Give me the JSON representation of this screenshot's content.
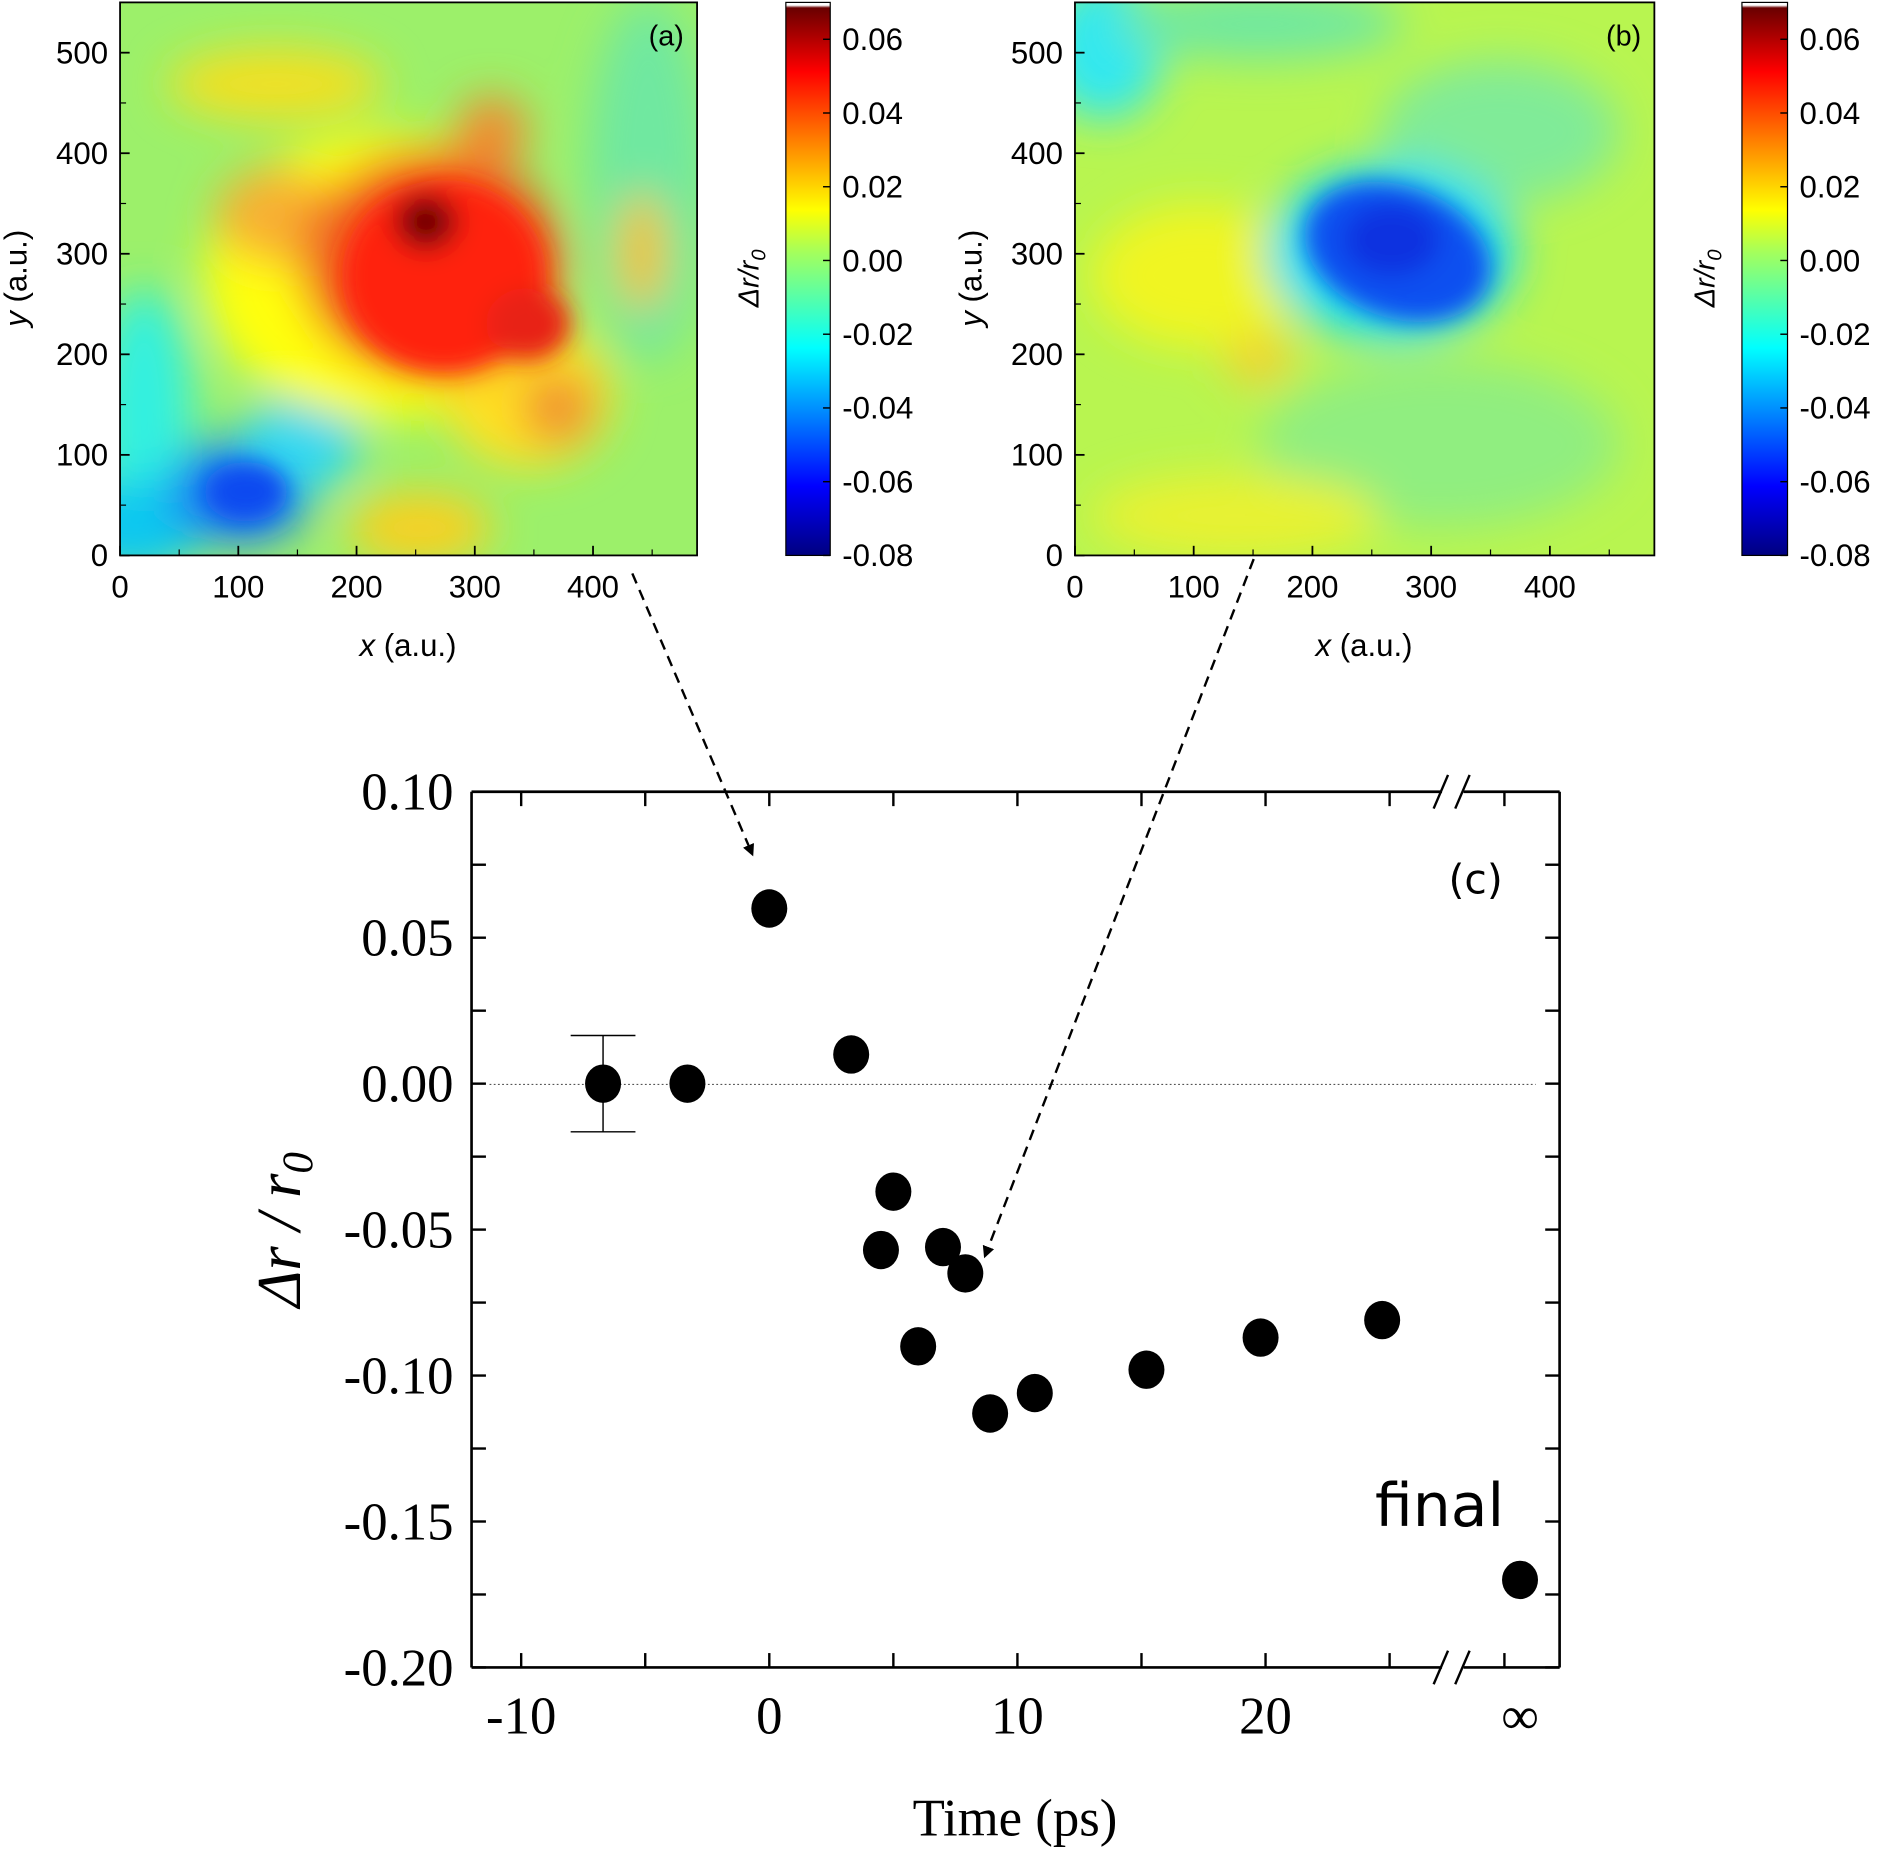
{
  "chart_data": [
    {
      "type": "heatmap",
      "panel_label": "(a)",
      "xlabel_var": "x",
      "xlabel_unit": " (a.u.)",
      "ylabel_var": "y",
      "ylabel_unit": " (a.u.)",
      "xlim": [
        0,
        488
      ],
      "ylim": [
        0,
        550
      ],
      "xticks": [
        "0",
        "100",
        "200",
        "300",
        "400"
      ],
      "yticks": [
        "0",
        "100",
        "200",
        "300",
        "400",
        "500"
      ],
      "colorbar": {
        "label_main": "Δr/r",
        "label_sub": "0",
        "range": [
          -0.08,
          0.07
        ],
        "ticks": [
          "0.06",
          "0.04",
          "0.02",
          "0.00",
          "-0.02",
          "-0.04",
          "-0.06",
          "-0.08"
        ],
        "colormap": "jet"
      },
      "features": "positive region (max ~0.07) centered near x=260, y=330; negative region (~-0.05) near x=110, y=60"
    },
    {
      "type": "heatmap",
      "panel_label": "(b)",
      "xlabel_var": "x",
      "xlabel_unit": " (a.u.)",
      "ylabel_var": "y",
      "ylabel_unit": " (a.u.)",
      "xlim": [
        0,
        488
      ],
      "ylim": [
        0,
        550
      ],
      "xticks": [
        "0",
        "100",
        "200",
        "300",
        "400"
      ],
      "yticks": [
        "0",
        "100",
        "200",
        "300",
        "400",
        "500"
      ],
      "colorbar": {
        "label_main": "Δr/r",
        "label_sub": "0",
        "range": [
          -0.08,
          0.07
        ],
        "ticks": [
          "0.06",
          "0.04",
          "0.02",
          "0.00",
          "-0.02",
          "-0.04",
          "-0.06",
          "-0.08"
        ],
        "colormap": "jet"
      },
      "features": "negative region (~-0.06) centered near x=270, y=310"
    },
    {
      "type": "scatter",
      "panel_label": "(c)",
      "xlabel": "Time (ps)",
      "ylabel_main": "Δr / r",
      "ylabel_sub": "0",
      "xlim": [
        -12,
        27.5
      ],
      "x_break": true,
      "ylim": [
        -0.2,
        0.1
      ],
      "xticks": [
        {
          "v": -10,
          "label": "-10"
        },
        {
          "v": 0,
          "label": "0"
        },
        {
          "v": 10,
          "label": "10"
        },
        {
          "v": 20,
          "label": "20"
        },
        {
          "v": "inf",
          "label": "∞"
        }
      ],
      "yticks": [
        "0.10",
        "0.05",
        "0.00",
        "-0.05",
        "-0.10",
        "-0.15",
        "-0.20"
      ],
      "reference_line_y": 0,
      "points": [
        {
          "x": -6.7,
          "y": 0.0,
          "err": 0.0165
        },
        {
          "x": -3.3,
          "y": 0.0
        },
        {
          "x": 0.0,
          "y": 0.06
        },
        {
          "x": 3.3,
          "y": 0.01
        },
        {
          "x": 5.0,
          "y": -0.037
        },
        {
          "x": 4.5,
          "y": -0.057
        },
        {
          "x": 7.0,
          "y": -0.056
        },
        {
          "x": 7.9,
          "y": -0.065
        },
        {
          "x": 6.0,
          "y": -0.09
        },
        {
          "x": 8.9,
          "y": -0.113
        },
        {
          "x": 10.7,
          "y": -0.106
        },
        {
          "x": 15.2,
          "y": -0.098
        },
        {
          "x": 19.8,
          "y": -0.087
        },
        {
          "x": 24.7,
          "y": -0.081
        },
        {
          "x": "inf",
          "y": -0.17
        }
      ],
      "annotation": "final",
      "arrows": [
        {
          "from": "(a)",
          "to_time": 0
        },
        {
          "from": "(b)",
          "to_time": 10
        }
      ]
    }
  ]
}
